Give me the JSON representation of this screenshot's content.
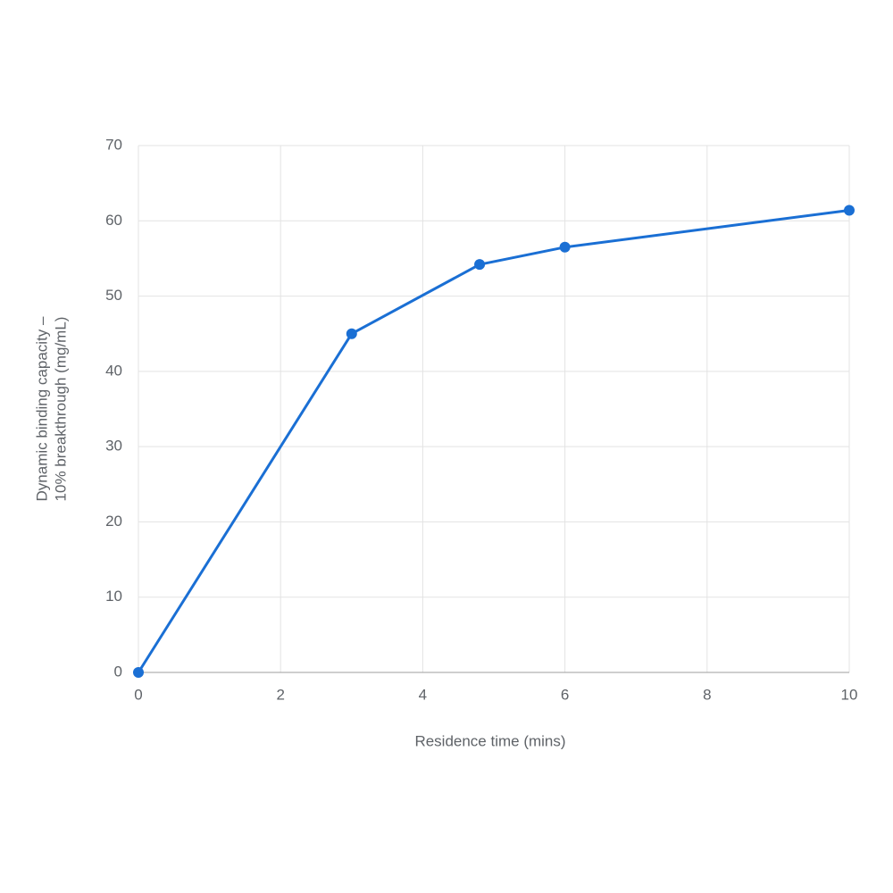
{
  "chart_data": {
    "type": "line",
    "xlabel": "Residence time (mins)",
    "ylabel": [
      "Dynamic binding capacity –",
      "10% breakthrough (mg/mL)"
    ],
    "x": [
      0,
      3,
      4.8,
      6,
      10
    ],
    "series": [
      {
        "name": "Dynamic binding capacity",
        "color": "#1a6fd4",
        "values": [
          0,
          45,
          54.2,
          56.5,
          61.4
        ]
      }
    ],
    "xlim": [
      0,
      10
    ],
    "xticks": [
      0,
      2,
      4,
      6,
      8,
      10
    ],
    "ylim": [
      0,
      70
    ],
    "yticks": [
      0,
      10,
      20,
      30,
      40,
      50,
      60,
      70
    ],
    "grid": true
  }
}
